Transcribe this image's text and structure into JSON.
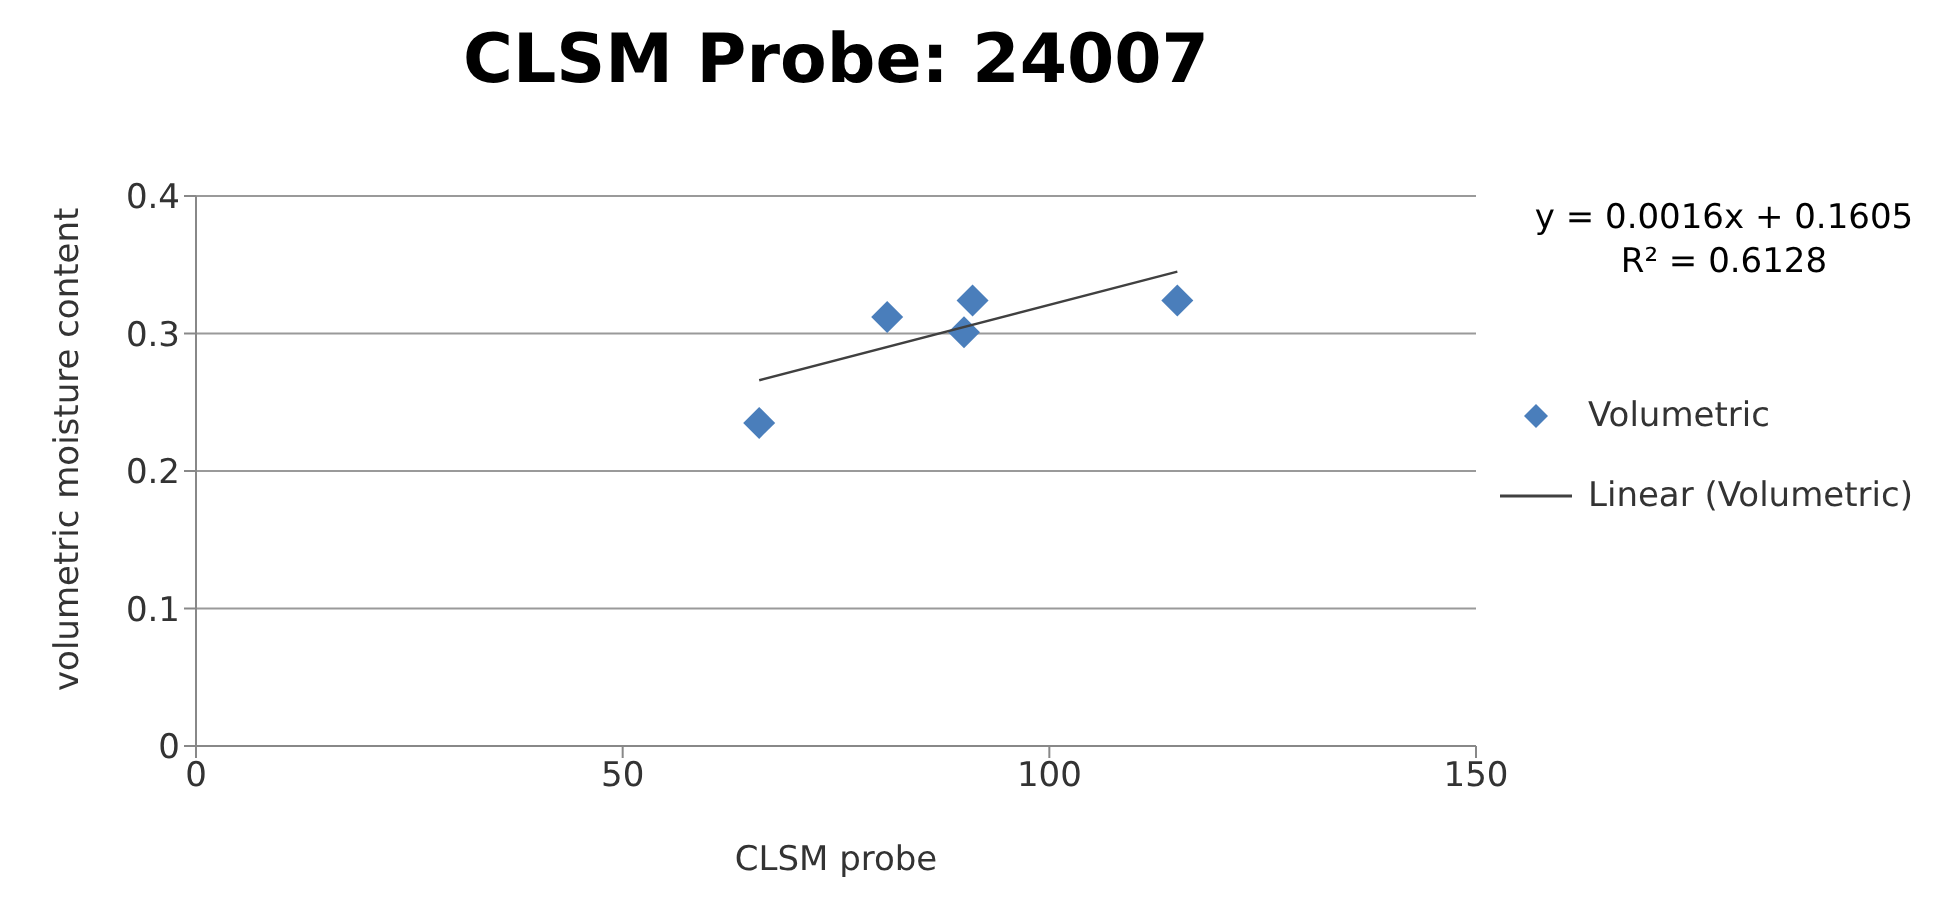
{
  "chart_data": {
    "type": "scatter",
    "title": "CLSM Probe: 24007",
    "xlabel": "CLSM probe",
    "ylabel": "volumetric moisture content",
    "series": [
      {
        "name": "Volumetric",
        "color": "#4a7ebb",
        "marker": "diamond",
        "x": [
          66,
          81,
          90,
          91,
          115
        ],
        "values": [
          0.235,
          0.312,
          0.301,
          0.324,
          0.324
        ]
      },
      {
        "name": "Linear (Volumetric)",
        "type": "line",
        "color": "#404040",
        "marker": "none",
        "x": [
          66,
          115
        ],
        "values": [
          0.266,
          0.345
        ]
      }
    ],
    "xlim": [
      0,
      150
    ],
    "xticks": [
      0,
      50,
      100,
      150
    ],
    "ylim": [
      0,
      0.4
    ],
    "yticks": [
      0,
      0.1,
      0.2,
      0.3,
      0.4
    ],
    "grid": "y",
    "legend": "right",
    "line_style": "solid",
    "annotations": [
      "y = 0.0016x + 0.1605",
      "R² = 0.6128"
    ]
  }
}
